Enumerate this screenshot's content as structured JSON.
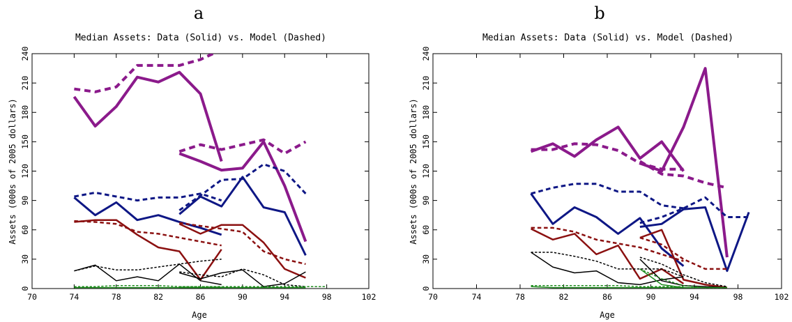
{
  "chart_data": [
    {
      "type": "line",
      "panel_label": "a",
      "title": "Median Assets:  Data (Solid) vs. Model (Dashed)",
      "xlabel": "Age",
      "ylabel": "Assets (000s of 2005 dollars)",
      "xlim": [
        70,
        102
      ],
      "ylim": [
        0,
        240
      ],
      "xticks": [
        70,
        74,
        78,
        82,
        86,
        90,
        94,
        98,
        102
      ],
      "yticks": [
        0,
        30,
        60,
        90,
        120,
        150,
        180,
        210,
        240
      ],
      "grid": false,
      "series": [
        {
          "color": "#8B1A8B",
          "style": "solid",
          "width": 4,
          "x": [
            74,
            76,
            78,
            80,
            82,
            84,
            86,
            88
          ],
          "y": [
            196,
            166,
            186,
            216,
            211,
            221,
            199,
            130
          ]
        },
        {
          "color": "#8B1A8B",
          "style": "dashed",
          "width": 4,
          "x": [
            74,
            76,
            78,
            80,
            82,
            84,
            86,
            88
          ],
          "y": [
            204,
            201,
            206,
            228,
            228,
            228,
            234,
            244
          ]
        },
        {
          "color": "#8B1A8B",
          "style": "solid",
          "width": 4,
          "x": [
            84,
            86,
            88,
            90,
            92,
            94,
            96
          ],
          "y": [
            138,
            130,
            121,
            123,
            150,
            105,
            48
          ]
        },
        {
          "color": "#8B1A8B",
          "style": "dashed",
          "width": 4,
          "x": [
            84,
            86,
            88,
            90,
            92,
            94,
            96
          ],
          "y": [
            140,
            147,
            142,
            147,
            152,
            138,
            150
          ]
        },
        {
          "color": "#0E1785",
          "style": "solid",
          "width": 3,
          "x": [
            74,
            76,
            78,
            80,
            82,
            84,
            86,
            88
          ],
          "y": [
            93,
            75,
            88,
            70,
            75,
            68,
            62,
            55
          ]
        },
        {
          "color": "#0E1785",
          "style": "dashed",
          "width": 3,
          "x": [
            74,
            76,
            78,
            80,
            82,
            84,
            86,
            88
          ],
          "y": [
            94,
            98,
            94,
            90,
            93,
            93,
            97,
            90
          ]
        },
        {
          "color": "#0E1785",
          "style": "solid",
          "width": 3,
          "x": [
            84,
            86,
            88,
            90,
            92,
            94,
            96
          ],
          "y": [
            76,
            94,
            84,
            114,
            83,
            78,
            34
          ]
        },
        {
          "color": "#0E1785",
          "style": "dashed",
          "width": 3,
          "x": [
            84,
            86,
            88,
            90,
            92,
            94,
            96
          ],
          "y": [
            80,
            95,
            111,
            112,
            127,
            120,
            97
          ]
        },
        {
          "color": "#8B1010",
          "style": "solid",
          "width": 2.5,
          "x": [
            74,
            76,
            78,
            80,
            82,
            84,
            86,
            88
          ],
          "y": [
            68,
            70,
            70,
            55,
            42,
            38,
            9,
            40
          ]
        },
        {
          "color": "#8B1010",
          "style": "dashed",
          "width": 2.5,
          "x": [
            74,
            76,
            78,
            80,
            82,
            84,
            86,
            88
          ],
          "y": [
            69,
            68,
            66,
            58,
            56,
            52,
            48,
            44
          ]
        },
        {
          "color": "#8B1010",
          "style": "solid",
          "width": 2.5,
          "x": [
            84,
            86,
            88,
            90,
            92,
            94,
            96
          ],
          "y": [
            66,
            56,
            65,
            65,
            47,
            20,
            11
          ]
        },
        {
          "color": "#8B1010",
          "style": "dashed",
          "width": 2.5,
          "x": [
            84,
            86,
            88,
            90,
            92,
            94,
            96
          ],
          "y": [
            67,
            64,
            61,
            58,
            38,
            30,
            25
          ]
        },
        {
          "color": "#000000",
          "style": "solid",
          "width": 1.5,
          "x": [
            74,
            76,
            78,
            80,
            82,
            84,
            86,
            88
          ],
          "y": [
            18,
            24,
            8,
            12,
            8,
            25,
            8,
            4
          ]
        },
        {
          "color": "#000000",
          "style": "dashed",
          "width": 1.5,
          "x": [
            74,
            76,
            78,
            80,
            82,
            84,
            86,
            88
          ],
          "y": [
            18,
            23,
            19,
            19,
            22,
            25,
            28,
            30
          ]
        },
        {
          "color": "#000000",
          "style": "solid",
          "width": 1.5,
          "x": [
            84,
            86,
            88,
            90,
            92,
            94,
            96
          ],
          "y": [
            16,
            10,
            16,
            19,
            2,
            5,
            17
          ]
        },
        {
          "color": "#000000",
          "style": "dashed",
          "width": 1.5,
          "x": [
            84,
            86,
            88,
            90,
            92,
            94,
            96
          ],
          "y": [
            17,
            14,
            12,
            20,
            14,
            4,
            2
          ]
        },
        {
          "color": "#1E8C1E",
          "style": "solid",
          "width": 1.5,
          "x": [
            74,
            76,
            78,
            80,
            82,
            84,
            86,
            88
          ],
          "y": [
            1,
            1,
            1,
            1,
            1,
            1,
            1,
            1
          ]
        },
        {
          "color": "#1E8C1E",
          "style": "dashed",
          "width": 1.5,
          "x": [
            74,
            76,
            78,
            80,
            82,
            84,
            86,
            88
          ],
          "y": [
            2,
            2,
            3,
            3,
            3,
            2,
            2,
            2
          ]
        },
        {
          "color": "#1E8C1E",
          "style": "solid",
          "width": 1.5,
          "x": [
            84,
            86,
            88,
            90,
            92,
            94,
            96
          ],
          "y": [
            1,
            1,
            1,
            1,
            1,
            1,
            1
          ]
        },
        {
          "color": "#1E8C1E",
          "style": "dashed",
          "width": 1.5,
          "x": [
            84,
            86,
            88,
            90,
            92,
            94,
            96,
            98
          ],
          "y": [
            2,
            2,
            2,
            2,
            2,
            2,
            2,
            2
          ]
        }
      ]
    },
    {
      "type": "line",
      "panel_label": "b",
      "title": "Median Assets:  Data (Solid) vs. Model (Dashed)",
      "xlabel": "Age",
      "ylabel": "Assets (000s of 2005 dollars)",
      "xlim": [
        70,
        102
      ],
      "ylim": [
        0,
        240
      ],
      "xticks": [
        70,
        74,
        78,
        82,
        86,
        90,
        94,
        98,
        102
      ],
      "yticks": [
        0,
        30,
        60,
        90,
        120,
        150,
        180,
        210,
        240
      ],
      "grid": false,
      "series": [
        {
          "color": "#8B1A8B",
          "style": "solid",
          "width": 4,
          "x": [
            79,
            81,
            83,
            85,
            87,
            89,
            91,
            93
          ],
          "y": [
            140,
            148,
            135,
            152,
            165,
            133,
            150,
            120
          ]
        },
        {
          "color": "#8B1A8B",
          "style": "dashed",
          "width": 4,
          "x": [
            79,
            81,
            83,
            85,
            87,
            89,
            91,
            93
          ],
          "y": [
            142,
            142,
            148,
            147,
            141,
            128,
            122,
            122
          ]
        },
        {
          "color": "#8B1A8B",
          "style": "solid",
          "width": 4,
          "x": [
            89,
            91,
            93,
            95,
            97
          ],
          "y": [
            128,
            120,
            165,
            225,
            32
          ]
        },
        {
          "color": "#8B1A8B",
          "style": "dashed",
          "width": 4,
          "x": [
            89,
            91,
            93,
            95,
            97
          ],
          "y": [
            130,
            117,
            115,
            108,
            103
          ]
        },
        {
          "color": "#0E1785",
          "style": "solid",
          "width": 3,
          "x": [
            79,
            81,
            83,
            85,
            87,
            89,
            91,
            93
          ],
          "y": [
            97,
            66,
            83,
            73,
            56,
            72,
            41,
            23
          ]
        },
        {
          "color": "#0E1785",
          "style": "dashed",
          "width": 3,
          "x": [
            79,
            81,
            83,
            85,
            87,
            89,
            91,
            93
          ],
          "y": [
            97,
            103,
            107,
            107,
            99,
            99,
            85,
            82
          ]
        },
        {
          "color": "#0E1785",
          "style": "solid",
          "width": 3,
          "x": [
            89,
            91,
            93,
            95,
            97,
            99
          ],
          "y": [
            63,
            66,
            81,
            83,
            18,
            78
          ]
        },
        {
          "color": "#0E1785",
          "style": "dashed",
          "width": 3,
          "x": [
            89,
            91,
            93,
            95,
            97,
            99
          ],
          "y": [
            67,
            73,
            82,
            93,
            73,
            73
          ]
        },
        {
          "color": "#8B1010",
          "style": "solid",
          "width": 2.5,
          "x": [
            79,
            81,
            83,
            85,
            87,
            89,
            91,
            93
          ],
          "y": [
            61,
            50,
            56,
            35,
            44,
            10,
            20,
            5
          ]
        },
        {
          "color": "#8B1010",
          "style": "dashed",
          "width": 2.5,
          "x": [
            79,
            81,
            83,
            85,
            87,
            89,
            91,
            93
          ],
          "y": [
            62,
            62,
            58,
            50,
            46,
            42,
            35,
            28
          ]
        },
        {
          "color": "#8B1010",
          "style": "solid",
          "width": 2.5,
          "x": [
            89,
            91,
            93,
            95,
            97
          ],
          "y": [
            52,
            60,
            9,
            4,
            1
          ]
        },
        {
          "color": "#8B1010",
          "style": "dashed",
          "width": 2.5,
          "x": [
            89,
            91,
            93,
            95,
            97
          ],
          "y": [
            52,
            45,
            30,
            20,
            20
          ]
        },
        {
          "color": "#000000",
          "style": "solid",
          "width": 1.5,
          "x": [
            79,
            81,
            83,
            85,
            87,
            89,
            91,
            93
          ],
          "y": [
            37,
            22,
            16,
            18,
            6,
            4,
            9,
            12
          ]
        },
        {
          "color": "#000000",
          "style": "dashed",
          "width": 1.5,
          "x": [
            79,
            81,
            83,
            85,
            87,
            89,
            91,
            93
          ],
          "y": [
            37,
            37,
            33,
            28,
            20,
            20,
            20,
            12
          ]
        },
        {
          "color": "#000000",
          "style": "solid",
          "width": 1.5,
          "x": [
            89,
            91,
            93,
            95,
            97
          ],
          "y": [
            30,
            8,
            3,
            2,
            1
          ]
        },
        {
          "color": "#000000",
          "style": "dashed",
          "width": 1.5,
          "x": [
            89,
            91,
            93,
            95,
            97
          ],
          "y": [
            32,
            25,
            14,
            6,
            2
          ]
        },
        {
          "color": "#1E8C1E",
          "style": "solid",
          "width": 1.5,
          "x": [
            79,
            81,
            83,
            85,
            87,
            89,
            91,
            93
          ],
          "y": [
            2,
            1,
            1,
            1,
            1,
            1,
            1,
            1
          ]
        },
        {
          "color": "#1E8C1E",
          "style": "dashed",
          "width": 1.5,
          "x": [
            79,
            81,
            83,
            85,
            87,
            89,
            91,
            93
          ],
          "y": [
            3,
            3,
            3,
            3,
            3,
            2,
            2,
            2
          ]
        },
        {
          "color": "#1E8C1E",
          "style": "solid",
          "width": 1.5,
          "x": [
            89,
            91,
            93,
            95,
            97
          ],
          "y": [
            20,
            4,
            1,
            1,
            1
          ]
        },
        {
          "color": "#1E8C1E",
          "style": "dashed",
          "width": 1.5,
          "x": [
            89,
            91,
            93,
            95,
            97
          ],
          "y": [
            20,
            10,
            3,
            1,
            1
          ]
        }
      ]
    }
  ]
}
